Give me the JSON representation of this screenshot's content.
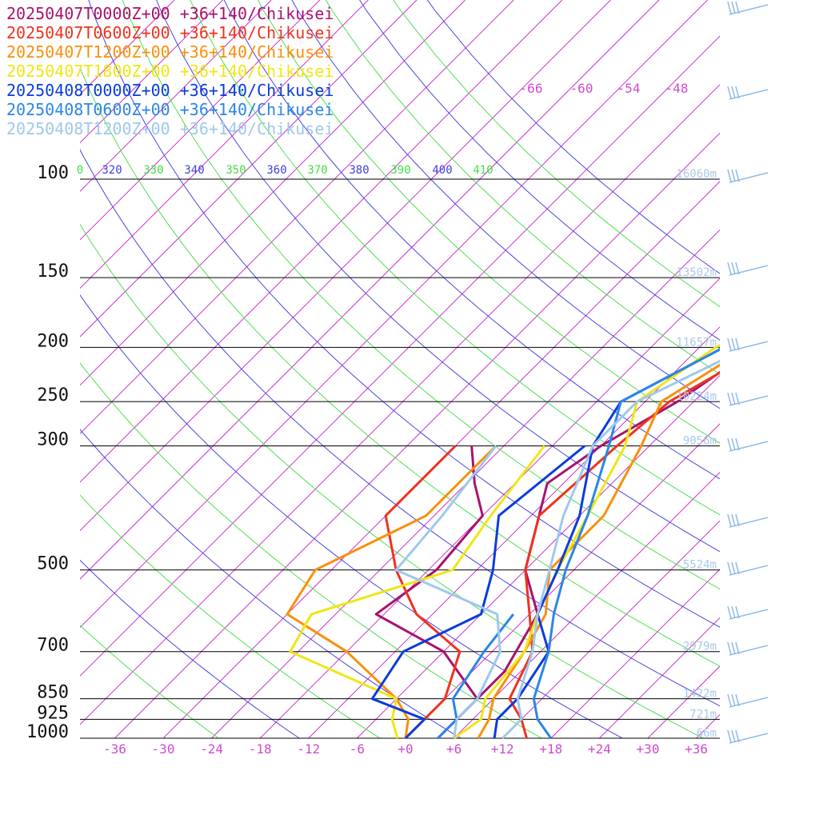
{
  "chart_data": {
    "type": "line",
    "title": "",
    "xlabel": "",
    "ylabel": "",
    "x_axis": {
      "tick_labels": [
        "-36",
        "-30",
        "-24",
        "-18",
        "-12",
        "-6",
        "+0",
        "+6",
        "+12",
        "+18",
        "+24",
        "+30",
        "+36"
      ],
      "xlim": [
        -40,
        40
      ]
    },
    "y_axis": {
      "scale": "log",
      "pressure_levels": [
        100,
        150,
        200,
        250,
        300,
        500,
        700,
        850,
        925,
        1000
      ],
      "pressure_labels": [
        "100",
        "150",
        "200",
        "250",
        "300",
        "500",
        "700",
        "850",
        "925",
        "1000"
      ],
      "ylim": [
        1000,
        100
      ]
    },
    "theta_labels": [
      {
        "text": "0",
        "color": "#44dd44"
      },
      {
        "text": "320",
        "color": "#4040dd"
      },
      {
        "text": "330",
        "color": "#44dd44"
      },
      {
        "text": "340",
        "color": "#4040dd"
      },
      {
        "text": "350",
        "color": "#44dd44"
      },
      {
        "text": "360",
        "color": "#4040dd"
      },
      {
        "text": "370",
        "color": "#44dd44"
      },
      {
        "text": "380",
        "color": "#4040dd"
      },
      {
        "text": "390",
        "color": "#44dd44"
      },
      {
        "text": "400",
        "color": "#4040dd"
      },
      {
        "text": "410",
        "color": "#44dd44"
      }
    ],
    "top_isotherm_labels": [
      "-66",
      "-60",
      "-54",
      "-48"
    ],
    "height_labels": [
      {
        "p": 100,
        "text": "16060m"
      },
      {
        "p": 150,
        "text": "13502m"
      },
      {
        "p": 200,
        "text": "11657m"
      },
      {
        "p": 250,
        "text": "10224m"
      },
      {
        "p": 300,
        "text": "9056m"
      },
      {
        "p": 500,
        "text": "5524m"
      },
      {
        "p": 700,
        "text": "2979m"
      },
      {
        "p": 850,
        "text": "1422m"
      },
      {
        "p": 925,
        "text": "721m"
      },
      {
        "p": 1000,
        "text": "66m"
      }
    ],
    "series": [
      {
        "name": "20250407T0000Z+00 +36+140/Chikusei",
        "color": "#a8126e",
        "temperature": [
          {
            "x": 47,
            "y": 52
          },
          {
            "x": 35,
            "y": 80
          },
          {
            "x": 7,
            "y": 110
          },
          {
            "x": -1,
            "y": 150
          },
          {
            "x": -5,
            "y": 200
          },
          {
            "x": -8,
            "y": 250
          },
          {
            "x": -12,
            "y": 300
          },
          {
            "x": -14,
            "y": 350
          },
          {
            "x": -6,
            "y": 500
          },
          {
            "x": 1,
            "y": 600
          },
          {
            "x": 4,
            "y": 760
          },
          {
            "x": 4,
            "y": 850
          },
          {
            "x": 4,
            "y": 925
          },
          {
            "x": 4,
            "y": 1000
          }
        ],
        "dewpoint": [
          {
            "x": -28,
            "y": 300
          },
          {
            "x": -23,
            "y": 350
          },
          {
            "x": -18,
            "y": 400
          },
          {
            "x": -17,
            "y": 500
          },
          {
            "x": -19,
            "y": 600
          },
          {
            "x": -6,
            "y": 700
          },
          {
            "x": 4,
            "y": 850
          },
          {
            "x": 4,
            "y": 1000
          }
        ]
      },
      {
        "name": "20250407T0600Z+00 +36+140/Chikusei",
        "color": "#f0321e",
        "temperature": [
          {
            "x": 33,
            "y": 56
          },
          {
            "x": 11,
            "y": 85
          },
          {
            "x": 2,
            "y": 100
          },
          {
            "x": 1,
            "y": 150
          },
          {
            "x": -4,
            "y": 200
          },
          {
            "x": -9,
            "y": 250
          },
          {
            "x": -10,
            "y": 300
          },
          {
            "x": -11,
            "y": 400
          },
          {
            "x": -6,
            "y": 500
          },
          {
            "x": 0,
            "y": 600
          },
          {
            "x": 5,
            "y": 700
          },
          {
            "x": 8,
            "y": 850
          },
          {
            "x": 12,
            "y": 925
          },
          {
            "x": 15,
            "y": 1000
          }
        ],
        "dewpoint": [
          {
            "x": -30,
            "y": 300
          },
          {
            "x": -30,
            "y": 400
          },
          {
            "x": -22,
            "y": 500
          },
          {
            "x": -14,
            "y": 600
          },
          {
            "x": -4,
            "y": 700
          },
          {
            "x": 0,
            "y": 850
          },
          {
            "x": 0,
            "y": 925
          },
          {
            "x": 0,
            "y": 1000
          }
        ]
      },
      {
        "name": "20250407T1200Z+00 +36+140/Chikusei",
        "color": "#fa900a",
        "temperature": [
          {
            "x": 55,
            "y": 52
          },
          {
            "x": 30,
            "y": 70
          },
          {
            "x": 2,
            "y": 100
          },
          {
            "x": 2,
            "y": 150
          },
          {
            "x": -6,
            "y": 200
          },
          {
            "x": -10,
            "y": 250
          },
          {
            "x": -7,
            "y": 300
          },
          {
            "x": -3,
            "y": 400
          },
          {
            "x": -3,
            "y": 500
          },
          {
            "x": 2,
            "y": 600
          },
          {
            "x": 4,
            "y": 700
          },
          {
            "x": 6,
            "y": 850
          },
          {
            "x": 8,
            "y": 925
          },
          {
            "x": 9,
            "y": 1000
          }
        ],
        "dewpoint": [
          {
            "x": -25,
            "y": 300
          },
          {
            "x": -25,
            "y": 400
          },
          {
            "x": -32,
            "y": 500
          },
          {
            "x": -30,
            "y": 600
          },
          {
            "x": -18,
            "y": 700
          },
          {
            "x": -6,
            "y": 850
          },
          {
            "x": -2,
            "y": 925
          },
          {
            "x": 0,
            "y": 1000
          }
        ]
      },
      {
        "name": "20250407T1800Z+00 +36+140/Chikusei",
        "color": "#f0e614",
        "temperature": [
          {
            "x": 54,
            "y": 52
          },
          {
            "x": 29,
            "y": 72
          },
          {
            "x": 0,
            "y": 100
          },
          {
            "x": -1,
            "y": 150
          },
          {
            "x": -10,
            "y": 200
          },
          {
            "x": -13,
            "y": 250
          },
          {
            "x": -9,
            "y": 300
          },
          {
            "x": -5,
            "y": 400
          },
          {
            "x": -2,
            "y": 500
          },
          {
            "x": 1,
            "y": 600
          },
          {
            "x": 4,
            "y": 700
          },
          {
            "x": 5,
            "y": 850
          },
          {
            "x": 7,
            "y": 925
          },
          {
            "x": 6,
            "y": 1000
          }
        ],
        "dewpoint": [
          {
            "x": -19,
            "y": 300
          },
          {
            "x": -17,
            "y": 400
          },
          {
            "x": -15,
            "y": 500
          },
          {
            "x": -27,
            "y": 600
          },
          {
            "x": -25,
            "y": 700
          },
          {
            "x": -6,
            "y": 850
          },
          {
            "x": -4,
            "y": 925
          },
          {
            "x": -1,
            "y": 1000
          }
        ]
      },
      {
        "name": "20250408T0000Z+00 +36+140/Chikusei",
        "color": "#0a3cdc",
        "temperature": [
          {
            "x": 52,
            "y": 52
          },
          {
            "x": 24,
            "y": 72
          },
          {
            "x": 0,
            "y": 100
          },
          {
            "x": -3,
            "y": 150
          },
          {
            "x": -9,
            "y": 200
          },
          {
            "x": -15,
            "y": 250
          },
          {
            "x": -13,
            "y": 300
          },
          {
            "x": -6,
            "y": 400
          },
          {
            "x": -2,
            "y": 500
          },
          {
            "x": 1,
            "y": 600
          },
          {
            "x": 7,
            "y": 700
          },
          {
            "x": 9,
            "y": 850
          },
          {
            "x": 9,
            "y": 925
          },
          {
            "x": 11,
            "y": 1000
          }
        ],
        "dewpoint": [
          {
            "x": -14,
            "y": 300
          },
          {
            "x": -16,
            "y": 400
          },
          {
            "x": -10,
            "y": 500
          },
          {
            "x": -6,
            "y": 600
          },
          {
            "x": -11,
            "y": 700
          },
          {
            "x": -9,
            "y": 850
          },
          {
            "x": 0,
            "y": 925
          },
          {
            "x": 0,
            "y": 1000
          }
        ]
      },
      {
        "name": "20250408T0600Z+00 +36+140/Chikusei",
        "color": "#2a86e8",
        "temperature": [
          {
            "x": 50,
            "y": 52
          },
          {
            "x": 24,
            "y": 73
          },
          {
            "x": 0,
            "y": 100
          },
          {
            "x": -1,
            "y": 150
          },
          {
            "x": -9,
            "y": 200
          },
          {
            "x": -15,
            "y": 250
          },
          {
            "x": -11,
            "y": 300
          },
          {
            "x": -5,
            "y": 400
          },
          {
            "x": -1,
            "y": 500
          },
          {
            "x": 3,
            "y": 600
          },
          {
            "x": 7,
            "y": 700
          },
          {
            "x": 11,
            "y": 850
          },
          {
            "x": 14,
            "y": 925
          },
          {
            "x": 18,
            "y": 1000
          }
        ],
        "dewpoint": [
          {
            "x": -2,
            "y": 600
          },
          {
            "x": -1,
            "y": 700
          },
          {
            "x": 1,
            "y": 850
          },
          {
            "x": 4,
            "y": 925
          },
          {
            "x": 4,
            "y": 1000
          }
        ]
      },
      {
        "name": "20250408T1200Z+00 +36+140/Chikusei",
        "color": "#9ec8ee",
        "temperature": [
          {
            "x": 48,
            "y": 52
          },
          {
            "x": 24,
            "y": 76
          },
          {
            "x": 0,
            "y": 100
          },
          {
            "x": -2,
            "y": 150
          },
          {
            "x": -6,
            "y": 200
          },
          {
            "x": -13,
            "y": 250
          },
          {
            "x": -13,
            "y": 300
          },
          {
            "x": -8,
            "y": 400
          },
          {
            "x": -3,
            "y": 500
          },
          {
            "x": 1,
            "y": 600
          },
          {
            "x": 5,
            "y": 700
          },
          {
            "x": 9,
            "y": 850
          },
          {
            "x": 12,
            "y": 925
          },
          {
            "x": 12,
            "y": 1000
          }
        ],
        "dewpoint": [
          {
            "x": -25,
            "y": 300
          },
          {
            "x": -23,
            "y": 400
          },
          {
            "x": -22,
            "y": 500
          },
          {
            "x": -4,
            "y": 600
          },
          {
            "x": 1,
            "y": 700
          },
          {
            "x": 4,
            "y": 850
          },
          {
            "x": 4,
            "y": 925
          },
          {
            "x": 6,
            "y": 1000
          }
        ]
      }
    ],
    "wind_barb_color": "#8fbbe8",
    "grid": true,
    "legend_position": "top-left"
  }
}
